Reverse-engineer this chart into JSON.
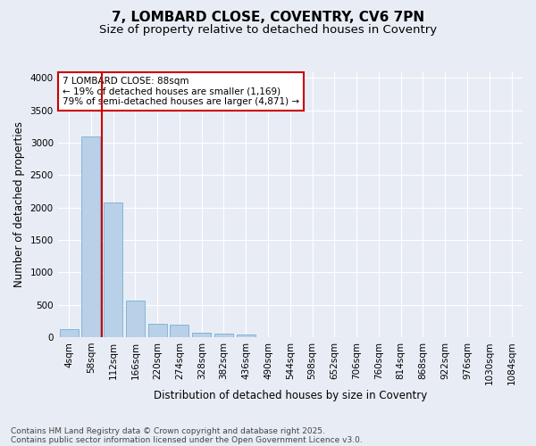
{
  "title1": "7, LOMBARD CLOSE, COVENTRY, CV6 7PN",
  "title2": "Size of property relative to detached houses in Coventry",
  "xlabel": "Distribution of detached houses by size in Coventry",
  "ylabel": "Number of detached properties",
  "footer1": "Contains HM Land Registry data © Crown copyright and database right 2025.",
  "footer2": "Contains public sector information licensed under the Open Government Licence v3.0.",
  "categories": [
    "4sqm",
    "58sqm",
    "112sqm",
    "166sqm",
    "220sqm",
    "274sqm",
    "328sqm",
    "382sqm",
    "436sqm",
    "490sqm",
    "544sqm",
    "598sqm",
    "652sqm",
    "706sqm",
    "760sqm",
    "814sqm",
    "868sqm",
    "922sqm",
    "976sqm",
    "1030sqm",
    "1084sqm"
  ],
  "values": [
    130,
    3100,
    2080,
    570,
    200,
    190,
    75,
    50,
    40,
    0,
    0,
    0,
    0,
    0,
    0,
    0,
    0,
    0,
    0,
    0,
    0
  ],
  "bar_color": "#b8d0e8",
  "bar_edge_color": "#7aaed4",
  "vline_color": "#cc0000",
  "annotation_text": "7 LOMBARD CLOSE: 88sqm\n← 19% of detached houses are smaller (1,169)\n79% of semi-detached houses are larger (4,871) →",
  "annotation_box_color": "white",
  "annotation_box_edge": "#cc0000",
  "ylim": [
    0,
    4100
  ],
  "yticks": [
    0,
    500,
    1000,
    1500,
    2000,
    2500,
    3000,
    3500,
    4000
  ],
  "background_color": "#e8edf5",
  "grid_color": "white",
  "title_fontsize": 11,
  "subtitle_fontsize": 9.5,
  "axis_label_fontsize": 8.5,
  "tick_fontsize": 7.5,
  "footer_fontsize": 6.5
}
